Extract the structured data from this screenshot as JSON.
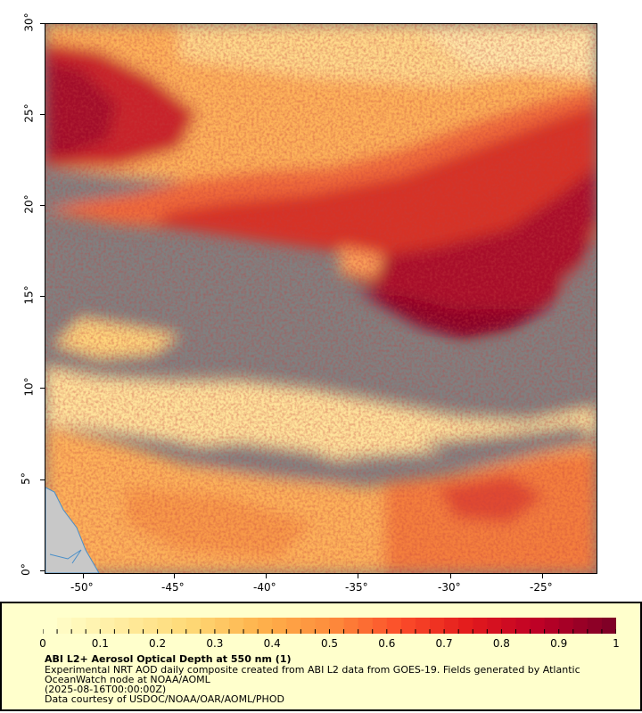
{
  "map": {
    "x_ticks": [
      "-50°",
      "-45°",
      "-40°",
      "-35°",
      "-30°",
      "-25°"
    ],
    "y_ticks": [
      "0°",
      "5°",
      "10°",
      "15°",
      "20°",
      "25°",
      "30°"
    ],
    "colors": {
      "no_data": "#808080",
      "land": "#c8c8c8",
      "coast": "#4a8fc8"
    }
  },
  "legend": {
    "colorbar_labels": [
      "0",
      "0.1",
      "0.2",
      "0.3",
      "0.4",
      "0.5",
      "0.6",
      "0.7",
      "0.8",
      "0.9",
      "1"
    ],
    "colorbar_colors": [
      "#ffffcc",
      "#ffeda0",
      "#fed976",
      "#feb24c",
      "#fd8d3c",
      "#fc4e2a",
      "#e31a1c",
      "#bd0026",
      "#800026"
    ],
    "title": "ABI L2+ Aerosol Optical Depth at 550 nm (1)",
    "line1": "Experimental NRT AOD daily composite created from ABI L2 data from GOES-19. Fields generated by Atlantic",
    "line2": "OceanWatch node at NOAA/AOML",
    "line3": "(2025-08-16T00:00:00Z)",
    "line4": "Data courtesy of USDOC/NOAA/OAR/AOML/PHOD"
  }
}
